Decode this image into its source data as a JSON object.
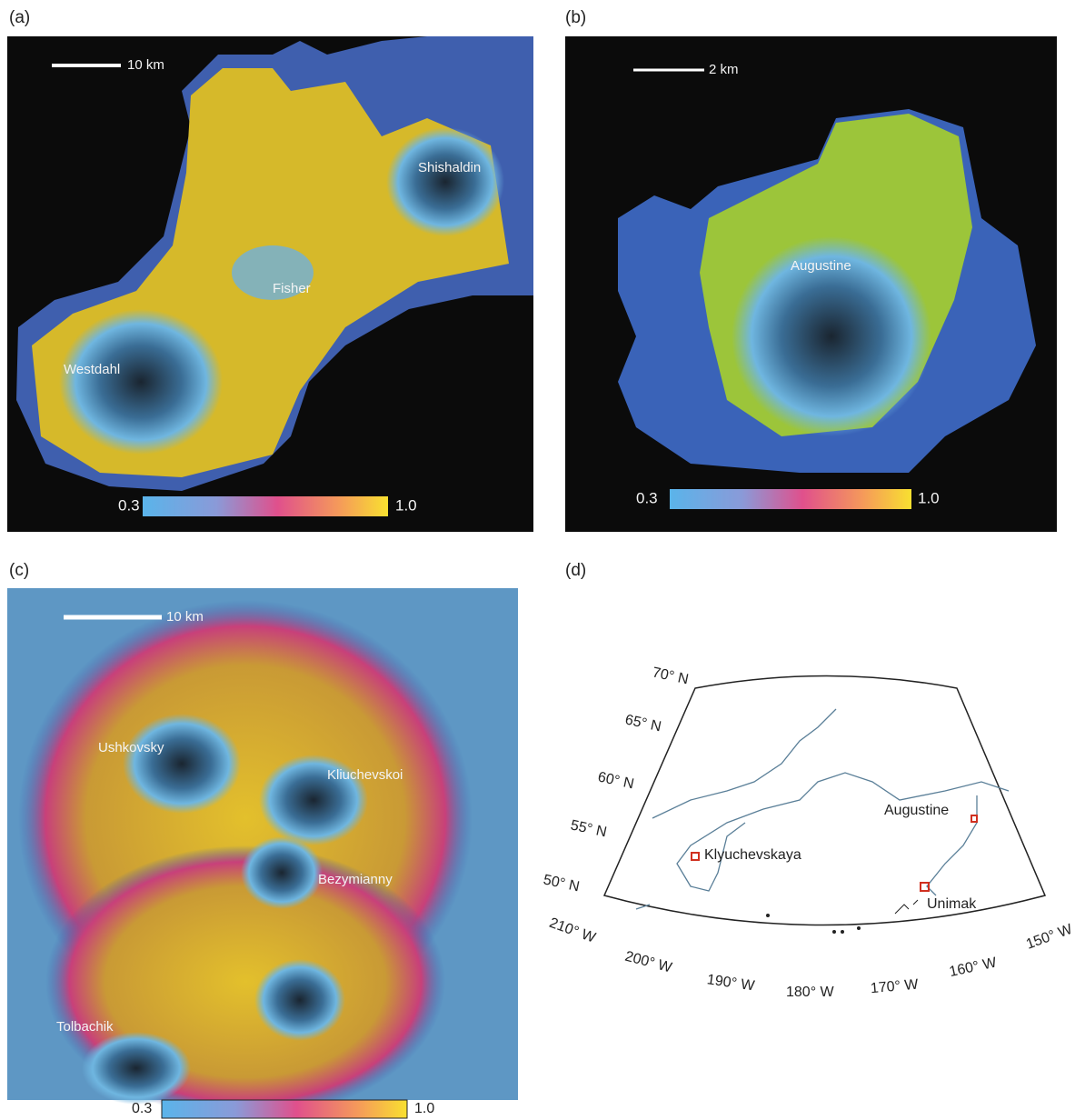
{
  "panels": [
    {
      "label": "(a)",
      "scale": "10 km",
      "colorbar": {
        "min": "0.3",
        "max": "1.0"
      },
      "names": [
        "Shishaldin",
        "Fisher",
        "Westdahl"
      ]
    },
    {
      "label": "(b)",
      "scale": "2 km",
      "colorbar": {
        "min": "0.3",
        "max": "1.0"
      },
      "names": [
        "Augustine"
      ]
    },
    {
      "label": "(c)",
      "scale": "10 km",
      "colorbar": {
        "min": "0.3",
        "max": "1.0"
      },
      "names": [
        "Ushkovsky",
        "Kliuchevskoi",
        "Bezymianny",
        "Tolbachik"
      ]
    }
  ],
  "map": {
    "label": "(d)",
    "lat_labels": [
      "70° N",
      "65° N",
      "60° N",
      "55° N",
      "50° N"
    ],
    "lon_labels": [
      "210° W",
      "200° W",
      "190° W",
      "180° W",
      "170° W",
      "160° W",
      "150° W"
    ],
    "places": [
      "Augustine",
      "Klyuchevskaya",
      "Unimak"
    ]
  }
}
